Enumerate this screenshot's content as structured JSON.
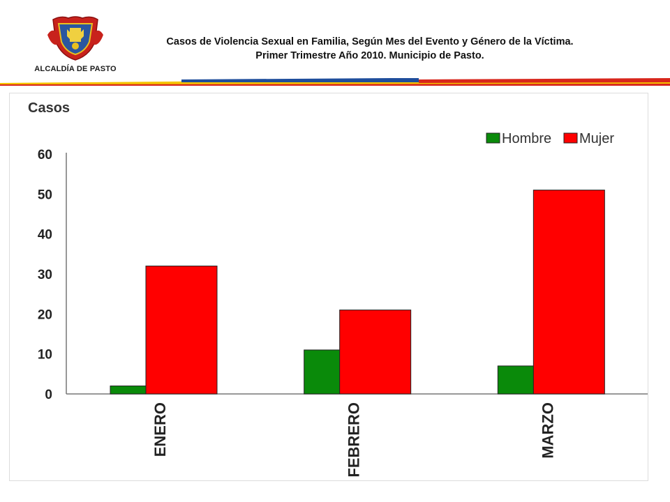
{
  "header": {
    "logo_text": "ALCALDÍA DE PASTO",
    "title_line1": "Casos de Violencia Sexual  en Familia, Según Mes del Evento y Género de la Víctima.",
    "title_line2": "Primer Trimestre Año 2010. Municipio de Pasto."
  },
  "colors": {
    "hombre": "#0a8a0a",
    "mujer": "#ff0000",
    "stripe_blue": "#1f4e9c",
    "stripe_yellow": "#f5c400",
    "stripe_red": "#d8261c"
  },
  "chart_data": {
    "type": "bar",
    "ylabel": "Casos",
    "categories": [
      "ENERO",
      "FEBRERO",
      "MARZO"
    ],
    "series": [
      {
        "name": "Hombre",
        "values": [
          2,
          11,
          7
        ]
      },
      {
        "name": "Mujer",
        "values": [
          32,
          21,
          51
        ]
      }
    ],
    "ylim": [
      0,
      60
    ],
    "yticks": [
      "0",
      "10",
      "20",
      "30",
      "40",
      "50",
      "60"
    ],
    "grid": false,
    "legend_position": "top-right"
  }
}
